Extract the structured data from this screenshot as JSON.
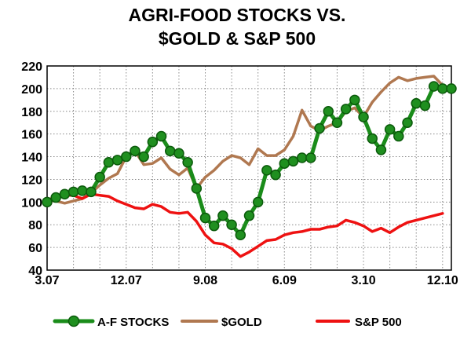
{
  "chart_data": {
    "type": "line",
    "title": [
      "AGRI-FOOD STOCKS VS.",
      "$GOLD & S&P 500"
    ],
    "xlabel": "",
    "ylabel": "",
    "ylim": [
      40,
      220
    ],
    "yticks": [
      40,
      60,
      80,
      100,
      120,
      140,
      160,
      180,
      200,
      220
    ],
    "xlim": [
      "2007-03",
      "2011-01"
    ],
    "xticks": [
      {
        "label": "3.07",
        "x": "2007-03"
      },
      {
        "label": "12.07",
        "x": "2007-12"
      },
      {
        "label": "9.08",
        "x": "2008-09"
      },
      {
        "label": "6.09",
        "x": "2009-06"
      },
      {
        "label": "3.10",
        "x": "2010-03"
      },
      {
        "label": "12.10",
        "x": "2010-12"
      }
    ],
    "grid": true,
    "legend_position": "bottom",
    "series": [
      {
        "name": "A-F STOCKS",
        "color": "#1a8c1a",
        "marker": "circle",
        "x": [
          "2007-03",
          "2007-04",
          "2007-05",
          "2007-06",
          "2007-07",
          "2007-08",
          "2007-09",
          "2007-10",
          "2007-11",
          "2007-12",
          "2008-01",
          "2008-02",
          "2008-03",
          "2008-04",
          "2008-05",
          "2008-06",
          "2008-07",
          "2008-08",
          "2008-09",
          "2008-10",
          "2008-11",
          "2008-12",
          "2009-01",
          "2009-02",
          "2009-03",
          "2009-04",
          "2009-05",
          "2009-06",
          "2009-07",
          "2009-08",
          "2009-09",
          "2009-10",
          "2009-11",
          "2009-12",
          "2010-01",
          "2010-02",
          "2010-03",
          "2010-04",
          "2010-05",
          "2010-06",
          "2010-07",
          "2010-08",
          "2010-09",
          "2010-10",
          "2010-11",
          "2010-12",
          "2011-01"
        ],
        "values": [
          100,
          104,
          107,
          109,
          110,
          109,
          122,
          135,
          137,
          140,
          145,
          140,
          153,
          158,
          145,
          143,
          135,
          112,
          86,
          79,
          88,
          80,
          71,
          88,
          100,
          128,
          124,
          134,
          136,
          139,
          139,
          165,
          180,
          170,
          182,
          190,
          175,
          156,
          146,
          164,
          158,
          170,
          187,
          185,
          202,
          200,
          200
        ]
      },
      {
        "name": "$GOLD",
        "color": "#b07850",
        "marker": "none",
        "x": [
          "2007-03",
          "2007-04",
          "2007-05",
          "2007-06",
          "2007-07",
          "2007-08",
          "2007-09",
          "2007-10",
          "2007-11",
          "2007-12",
          "2008-01",
          "2008-02",
          "2008-03",
          "2008-04",
          "2008-05",
          "2008-06",
          "2008-07",
          "2008-08",
          "2008-09",
          "2008-10",
          "2008-11",
          "2008-12",
          "2009-01",
          "2009-02",
          "2009-03",
          "2009-04",
          "2009-05",
          "2009-06",
          "2009-07",
          "2009-08",
          "2009-09",
          "2009-10",
          "2009-11",
          "2009-12",
          "2010-01",
          "2010-02",
          "2010-03",
          "2010-04",
          "2010-05",
          "2010-06",
          "2010-07",
          "2010-08",
          "2010-09",
          "2010-10",
          "2010-11",
          "2010-12"
        ],
        "values": [
          101,
          101,
          99,
          101,
          103,
          108,
          115,
          121,
          125,
          140,
          145,
          133,
          134,
          139,
          129,
          124,
          130,
          112,
          122,
          128,
          136,
          141,
          139,
          133,
          147,
          141,
          141,
          146,
          158,
          181,
          167,
          163,
          167,
          170,
          180,
          183,
          175,
          188,
          197,
          205,
          210,
          207,
          209,
          210,
          211,
          203
        ]
      },
      {
        "name": "S&P 500",
        "color": "#ee1111",
        "marker": "none",
        "x": [
          "2007-03",
          "2007-04",
          "2007-05",
          "2007-06",
          "2007-07",
          "2007-08",
          "2007-09",
          "2007-10",
          "2007-11",
          "2007-12",
          "2008-01",
          "2008-02",
          "2008-03",
          "2008-04",
          "2008-05",
          "2008-06",
          "2008-07",
          "2008-08",
          "2008-09",
          "2008-10",
          "2008-11",
          "2008-12",
          "2009-01",
          "2009-02",
          "2009-03",
          "2009-04",
          "2009-05",
          "2009-06",
          "2009-07",
          "2009-08",
          "2009-09",
          "2009-10",
          "2009-11",
          "2009-12",
          "2010-01",
          "2010-02",
          "2010-03",
          "2010-04",
          "2010-05",
          "2010-06",
          "2010-07",
          "2010-08",
          "2010-09",
          "2010-10",
          "2010-11",
          "2010-12"
        ],
        "values": [
          102,
          104,
          106,
          106,
          103,
          107,
          106,
          105,
          101,
          98,
          95,
          94,
          98,
          96,
          91,
          90,
          91,
          83,
          71,
          64,
          63,
          59,
          52,
          56,
          61,
          66,
          67,
          71,
          73,
          74,
          76,
          76,
          78,
          79,
          84,
          82,
          79,
          74,
          77,
          73,
          78,
          82,
          84,
          86,
          88,
          90
        ]
      }
    ]
  }
}
